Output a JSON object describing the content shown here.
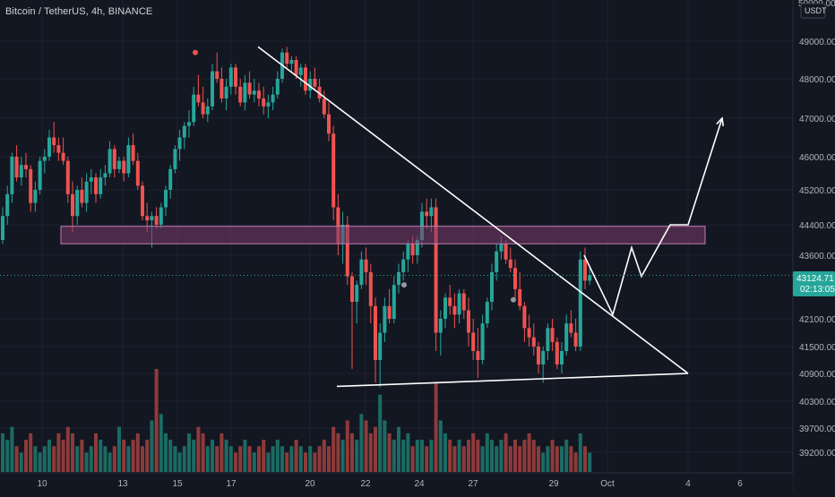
{
  "header": {
    "symbol_line": "Bitcoin / TetherUS, 4h, BINANCE"
  },
  "price_axis": {
    "currency": "USDT",
    "top_partial_label": "50000.00",
    "last_price": "43124.71",
    "countdown": "02:13:05"
  },
  "colors": {
    "background": "#131722",
    "up": "#26a69a",
    "down": "#ef5350",
    "up_volume": "#1b6b63",
    "down_volume": "#8f3a3a",
    "zone_fill": "#7b3b6a",
    "zone_stroke": "#c47bb6",
    "drawing": "#ffffff",
    "last_price": "#26a69a",
    "dots": "#9598a1"
  },
  "chart_data": {
    "type": "candlestick",
    "symbol": "Bitcoin / TetherUS",
    "interval": "4h",
    "exchange": "BINANCE",
    "y_ticks": [
      49000,
      48000,
      47000,
      46000,
      45200,
      44400,
      43600,
      42100,
      41500,
      40900,
      40300,
      39700,
      39200
    ],
    "y_tick_labels": [
      "49000.00",
      "48000.00",
      "47000.00",
      "46000.00",
      "45200.00",
      "44400.00",
      "43600.00",
      "42100.00",
      "41500.00",
      "40900.00",
      "40300.00",
      "39700.00",
      "39200.00"
    ],
    "x_ticks": [
      "10",
      "13",
      "15",
      "17",
      "20",
      "22",
      "24",
      "27",
      "29",
      "Oct",
      "4",
      "6"
    ],
    "last_price": 43124.71,
    "resistance_zone": {
      "low": 43900,
      "high": 44360
    },
    "trendlines": [
      {
        "name": "descending",
        "from": {
          "time": "Sep 18",
          "price": 48850
        },
        "to": {
          "time": "Oct 4",
          "price": 40900
        }
      },
      {
        "name": "support",
        "from": {
          "time": "Sep 21",
          "price": 40620
        },
        "to": {
          "time": "Oct 4",
          "price": 40900
        }
      }
    ],
    "projection_path": [
      {
        "time": "Sep 30",
        "price": 43600
      },
      {
        "time": "Oct 1",
        "price": 42200
      },
      {
        "time": "Oct 2",
        "price": 43800
      },
      {
        "time": "Oct 2",
        "price": 43100
      },
      {
        "time": "Oct 3",
        "price": 44400
      },
      {
        "time": "Oct 4",
        "price": 44400
      },
      {
        "time": "Oct 4",
        "price": 44400
      },
      {
        "time": "Oct 5",
        "price": 47000
      }
    ],
    "markers": [
      {
        "time": "Sep 15",
        "price": 48700,
        "color": "#ef5350"
      },
      {
        "time": "Sep 23",
        "price": 42900,
        "color": "#9598a1"
      },
      {
        "time": "Sep 28",
        "price": 42550,
        "color": "#9598a1"
      }
    ],
    "candles": [
      [
        44000,
        44800,
        43900,
        44600
      ],
      [
        44600,
        45300,
        44400,
        45100
      ],
      [
        45100,
        46100,
        44900,
        46000
      ],
      [
        46000,
        46300,
        45400,
        45500
      ],
      [
        45500,
        46000,
        45300,
        45800
      ],
      [
        45800,
        46100,
        45500,
        45700
      ],
      [
        45700,
        45800,
        44700,
        44900
      ],
      [
        44900,
        45400,
        44700,
        45200
      ],
      [
        45200,
        46000,
        45100,
        45900
      ],
      [
        45900,
        46200,
        45600,
        46000
      ],
      [
        46000,
        46700,
        45900,
        46500
      ],
      [
        46500,
        46900,
        46100,
        46300
      ],
      [
        46300,
        46500,
        45900,
        46100
      ],
      [
        46100,
        46500,
        45800,
        45900
      ],
      [
        45900,
        46000,
        44900,
        45100
      ],
      [
        45100,
        45400,
        44200,
        44600
      ],
      [
        44600,
        45300,
        44400,
        45200
      ],
      [
        45200,
        45500,
        44800,
        44900
      ],
      [
        44900,
        45600,
        44700,
        45400
      ],
      [
        45400,
        45700,
        45100,
        45500
      ],
      [
        45500,
        45600,
        44900,
        45100
      ],
      [
        45100,
        45700,
        45000,
        45500
      ],
      [
        45500,
        45800,
        45300,
        45600
      ],
      [
        45600,
        46400,
        45500,
        46200
      ],
      [
        46200,
        46300,
        45500,
        45700
      ],
      [
        45700,
        46000,
        45600,
        45900
      ],
      [
        45900,
        46000,
        45400,
        45600
      ],
      [
        45600,
        46500,
        45500,
        46300
      ],
      [
        46300,
        46600,
        45800,
        45900
      ],
      [
        45900,
        46100,
        45200,
        45300
      ],
      [
        45300,
        45400,
        44500,
        44600
      ],
      [
        44600,
        44900,
        44200,
        44500
      ],
      [
        44500,
        44700,
        43800,
        44600
      ],
      [
        44600,
        44800,
        44300,
        44400
      ],
      [
        44400,
        44900,
        44300,
        44800
      ],
      [
        44800,
        45300,
        44600,
        45200
      ],
      [
        45200,
        45800,
        45000,
        45700
      ],
      [
        45700,
        46300,
        45600,
        46200
      ],
      [
        46200,
        46700,
        45900,
        46500
      ],
      [
        46500,
        46900,
        46200,
        46800
      ],
      [
        46800,
        47200,
        46500,
        46900
      ],
      [
        46900,
        47800,
        46800,
        47600
      ],
      [
        47600,
        48100,
        47300,
        47400
      ],
      [
        47400,
        47800,
        47000,
        47100
      ],
      [
        47100,
        47500,
        46900,
        47300
      ],
      [
        47300,
        48400,
        47200,
        48200
      ],
      [
        48200,
        48700,
        47900,
        48000
      ],
      [
        48000,
        48300,
        47400,
        47500
      ],
      [
        47500,
        48000,
        47200,
        47800
      ],
      [
        47800,
        48400,
        47600,
        48300
      ],
      [
        48300,
        48400,
        47600,
        47800
      ],
      [
        47800,
        48000,
        47300,
        47400
      ],
      [
        47400,
        48100,
        47200,
        47900
      ],
      [
        47900,
        48200,
        47500,
        47600
      ],
      [
        47600,
        48000,
        47400,
        47700
      ],
      [
        47700,
        47900,
        47300,
        47500
      ],
      [
        47500,
        47800,
        47100,
        47300
      ],
      [
        47300,
        47600,
        47000,
        47400
      ],
      [
        47400,
        47800,
        47200,
        47600
      ],
      [
        47600,
        48200,
        47500,
        48000
      ],
      [
        48000,
        48800,
        47900,
        48700
      ],
      [
        48700,
        48850,
        48300,
        48400
      ],
      [
        48400,
        48600,
        48200,
        48500
      ],
      [
        48500,
        48600,
        48000,
        48100
      ],
      [
        48100,
        48400,
        47800,
        48300
      ],
      [
        48300,
        48400,
        47600,
        47700
      ],
      [
        47700,
        48200,
        47500,
        48000
      ],
      [
        48000,
        48300,
        47700,
        47800
      ],
      [
        47800,
        48000,
        47400,
        47500
      ],
      [
        47500,
        47700,
        47000,
        47100
      ],
      [
        47100,
        47400,
        46400,
        46600
      ],
      [
        46600,
        46800,
        44500,
        44800
      ],
      [
        44800,
        45100,
        43600,
        43900
      ],
      [
        43900,
        44700,
        43400,
        44400
      ],
      [
        44400,
        44600,
        42900,
        43100
      ],
      [
        43100,
        43200,
        41000,
        42500
      ],
      [
        42500,
        43000,
        42000,
        42900
      ],
      [
        42900,
        43700,
        42800,
        43500
      ],
      [
        43500,
        43800,
        42900,
        43200
      ],
      [
        43200,
        43400,
        42000,
        42400
      ],
      [
        42400,
        42600,
        40700,
        41200
      ],
      [
        41200,
        42000,
        40600,
        41800
      ],
      [
        41800,
        42600,
        41600,
        42400
      ],
      [
        42400,
        42800,
        42000,
        42100
      ],
      [
        42100,
        43100,
        42000,
        42900
      ],
      [
        42900,
        43400,
        42700,
        43200
      ],
      [
        43200,
        43700,
        43000,
        43500
      ],
      [
        43500,
        44000,
        43200,
        43900
      ],
      [
        43900,
        44100,
        43400,
        43600
      ],
      [
        43600,
        44100,
        43400,
        44000
      ],
      [
        44000,
        44900,
        43800,
        44700
      ],
      [
        44700,
        45000,
        44300,
        44600
      ],
      [
        44600,
        45000,
        44200,
        44800
      ],
      [
        44800,
        45000,
        41400,
        41800
      ],
      [
        41800,
        42300,
        41300,
        42100
      ],
      [
        42100,
        42700,
        41900,
        42600
      ],
      [
        42600,
        42900,
        42200,
        42400
      ],
      [
        42400,
        42700,
        41900,
        42200
      ],
      [
        42200,
        42800,
        42000,
        42700
      ],
      [
        42700,
        42800,
        42100,
        42300
      ],
      [
        42300,
        42600,
        41500,
        41800
      ],
      [
        41800,
        42100,
        41200,
        41400
      ],
      [
        41400,
        41900,
        40800,
        41200
      ],
      [
        41200,
        42200,
        41100,
        42000
      ],
      [
        42000,
        42600,
        41900,
        42500
      ],
      [
        42500,
        43400,
        42300,
        43200
      ],
      [
        43200,
        43900,
        43000,
        43700
      ],
      [
        43700,
        44100,
        43500,
        43900
      ],
      [
        43900,
        44000,
        43400,
        43500
      ],
      [
        43500,
        43800,
        43200,
        43300
      ],
      [
        43300,
        43500,
        42600,
        42800
      ],
      [
        42800,
        43200,
        42300,
        42400
      ],
      [
        42400,
        42500,
        41600,
        41900
      ],
      [
        41900,
        42200,
        41500,
        41700
      ],
      [
        41700,
        42000,
        41300,
        41500
      ],
      [
        41500,
        41600,
        40900,
        41100
      ],
      [
        41100,
        41500,
        40700,
        41400
      ],
      [
        41400,
        42000,
        41200,
        41900
      ],
      [
        41900,
        42100,
        41400,
        41600
      ],
      [
        41600,
        41700,
        41000,
        41100
      ],
      [
        41100,
        41600,
        40900,
        41400
      ],
      [
        41400,
        42200,
        41300,
        42000
      ],
      [
        42000,
        42300,
        41700,
        41800
      ],
      [
        41800,
        42100,
        41400,
        41500
      ],
      [
        41500,
        43700,
        41400,
        43500
      ],
      [
        43500,
        43800,
        42800,
        43000
      ],
      [
        43000,
        43300,
        42900,
        43124.71
      ]
    ],
    "volumes": [
      6,
      5,
      7,
      4,
      3,
      5,
      6,
      4,
      3,
      4,
      5,
      4,
      6,
      5,
      7,
      6,
      4,
      5,
      3,
      4,
      6,
      5,
      4,
      3,
      4,
      7,
      5,
      4,
      5,
      6,
      4,
      5,
      8,
      16,
      9,
      6,
      5,
      4,
      3,
      4,
      6,
      5,
      7,
      6,
      4,
      5,
      4,
      6,
      5,
      4,
      3,
      4,
      5,
      4,
      3,
      4,
      5,
      3,
      4,
      5,
      4,
      3,
      4,
      5,
      4,
      3,
      4,
      3,
      4,
      5,
      4,
      7,
      6,
      5,
      8,
      6,
      5,
      9,
      8,
      6,
      7,
      12,
      8,
      6,
      5,
      7,
      5,
      6,
      4,
      5,
      5,
      4,
      5,
      14,
      8,
      6,
      5,
      4,
      5,
      4,
      5,
      6,
      5,
      4,
      6,
      5,
      4,
      5,
      6,
      4,
      5,
      4,
      5,
      6,
      5,
      4,
      3,
      4,
      5,
      4,
      4,
      5,
      4,
      3,
      6,
      4,
      3
    ]
  }
}
